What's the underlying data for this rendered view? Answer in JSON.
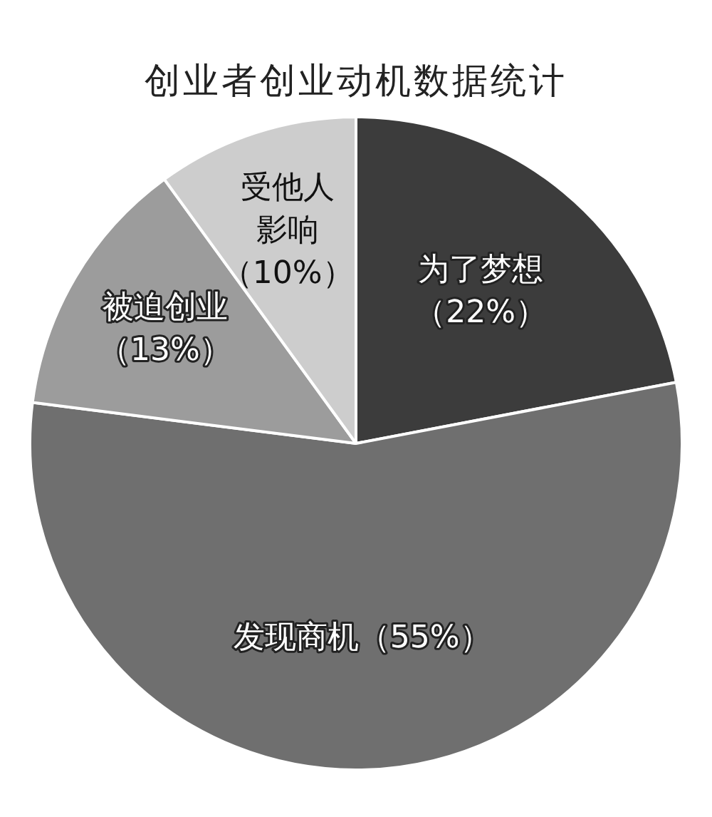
{
  "chart_data": {
    "type": "pie",
    "title": "创业者创业动机数据统计",
    "categories": [
      "为了梦想",
      "发现商机",
      "被迫创业",
      "受他人影响"
    ],
    "values": [
      22,
      55,
      13,
      10
    ],
    "value_labels": [
      "（22%）",
      "（55%）",
      "（13%）",
      "（10%）"
    ],
    "colors": [
      "#3c3c3c",
      "#6f6f6f",
      "#9c9c9c",
      "#cdcdcd"
    ]
  }
}
